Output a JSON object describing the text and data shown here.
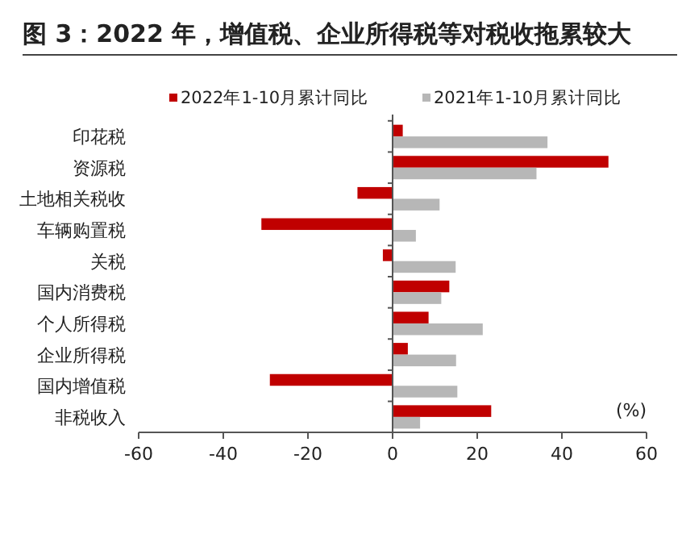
{
  "chart_data": {
    "type": "bar",
    "orientation": "horizontal",
    "title": "图 3：2022 年，增值税、企业所得税等对税收拖累较大",
    "xlabel": "(%)",
    "categories": [
      "印花税",
      "资源税",
      "土地相关税收",
      "车辆购置税",
      "关税",
      "国内消费税",
      "个人所得税",
      "企业所得税",
      "国内增值税",
      "非税收入"
    ],
    "series": [
      {
        "name": "2022年1-10月累计同比",
        "color": "#c00000",
        "values": [
          2.4,
          51,
          -8.3,
          -31,
          -2.3,
          13.4,
          8.5,
          3.6,
          -29,
          23.3
        ]
      },
      {
        "name": "2021年1-10月累计同比",
        "color": "#b7b7b7",
        "values": [
          36.6,
          34,
          11.1,
          5.5,
          14.9,
          11.5,
          21.3,
          15,
          15.3,
          6.5
        ]
      }
    ],
    "xlim": [
      -60,
      60
    ],
    "xticks": [
      -60,
      -40,
      -20,
      0,
      20,
      40,
      60
    ],
    "legend": "top"
  }
}
